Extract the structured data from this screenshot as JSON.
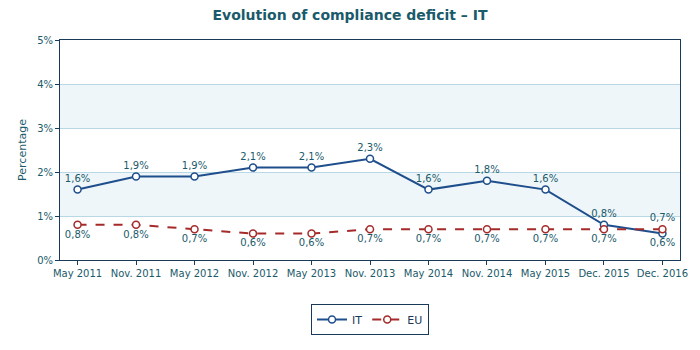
{
  "chart_data": {
    "type": "line",
    "title": "Evolution of compliance deficit – IT",
    "y_label": "Percentage",
    "categories": [
      "May 2011",
      "Nov. 2011",
      "May 2012",
      "Nov. 2012",
      "May 2013",
      "Nov. 2013",
      "May 2014",
      "Nov. 2014",
      "May 2015",
      "Dec. 2015",
      "Dec. 2016"
    ],
    "series": [
      {
        "name": "IT",
        "color": "#1f4e8c",
        "marker": "circle",
        "line_style": "solid",
        "values": [
          1.6,
          1.9,
          1.9,
          2.1,
          2.1,
          2.3,
          1.6,
          1.8,
          1.6,
          0.8,
          0.6
        ],
        "value_labels": [
          "1,6%",
          "1,9%",
          "1,9%",
          "2,1%",
          "2,1%",
          "2,3%",
          "1,6%",
          "1,8%",
          "1,6%",
          "0,8%",
          "0,6%"
        ]
      },
      {
        "name": "EU",
        "color": "#a52a2a",
        "marker": "circle",
        "line_style": "dashed",
        "values": [
          0.8,
          0.8,
          0.7,
          0.6,
          0.6,
          0.7,
          0.7,
          0.7,
          0.7,
          0.7,
          0.7
        ],
        "value_labels": [
          "0,8%",
          "0,8%",
          "0,7%",
          "0,6%",
          "0,6%",
          "0,7%",
          "0,7%",
          "0,7%",
          "0,7%",
          "0,7%",
          "0,7%"
        ]
      }
    ],
    "ylim": [
      0,
      5
    ],
    "yticks": [
      {
        "value": 0,
        "label": "0%"
      },
      {
        "value": 1,
        "label": "1%"
      },
      {
        "value": 2,
        "label": "2%"
      },
      {
        "value": 3,
        "label": "3%"
      },
      {
        "value": 4,
        "label": "4%"
      },
      {
        "value": 5,
        "label": "5%"
      }
    ],
    "grid": true,
    "legend": "bottom",
    "data_labels": true
  }
}
